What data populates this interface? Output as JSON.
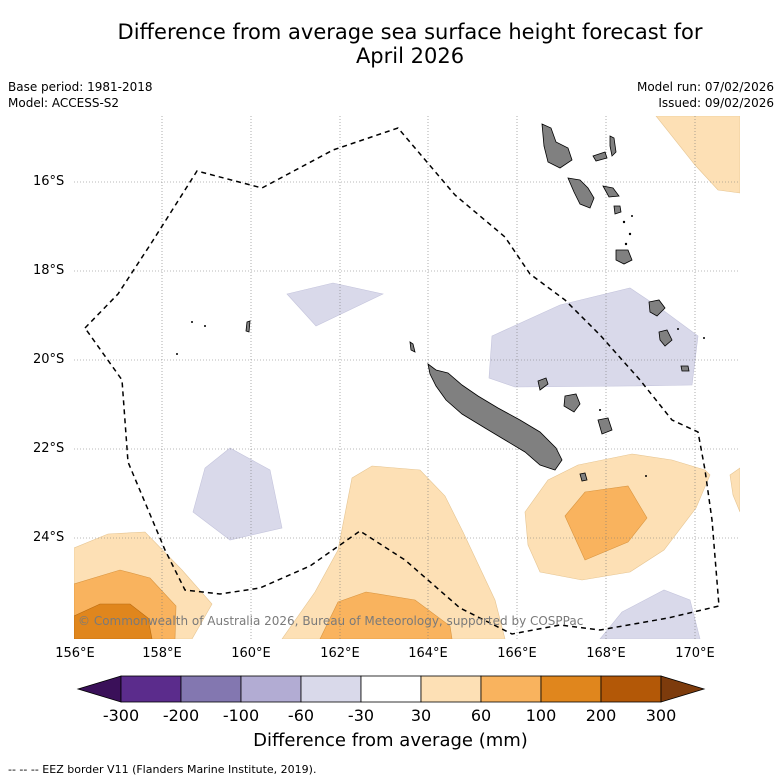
{
  "title": {
    "line1": "Difference from average sea surface height forecast for",
    "line2": "April 2026"
  },
  "meta": {
    "base_period": "Base period: 1981-2018",
    "model": "Model: ACCESS-S2",
    "model_run": "Model run: 07/02/2026",
    "issued": "Issued: 09/02/2026"
  },
  "map": {
    "latitude_ticks": [
      "16°S",
      "18°S",
      "20°S",
      "22°S",
      "24°S"
    ],
    "longitude_ticks": [
      "156°E",
      "158°E",
      "160°E",
      "162°E",
      "164°E",
      "166°E",
      "168°E",
      "170°E"
    ],
    "lon_range": [
      155.9,
      170.5
    ],
    "lat_range": [
      -26.2,
      -14.5
    ],
    "copyright": "© Commonwealth of Australia 2026, Bureau of Meteorology, supported by COSPPac"
  },
  "colorbar": {
    "tick_labels": [
      "-300",
      "-200",
      "-100",
      "-60",
      "-30",
      "30",
      "60",
      "100",
      "200",
      "300"
    ],
    "colors": [
      "#3a1059",
      "#5b2c8c",
      "#8377b0",
      "#b2acd3",
      "#d9d9ea",
      "#ffffff",
      "#fde0b5",
      "#f9b35e",
      "#e0861d",
      "#b35807",
      "#7d3b0c"
    ],
    "title": "Difference from average (mm)"
  },
  "footnote": "--  --  -- EEZ border V11 (Flanders Marine Institute, 2019)."
}
